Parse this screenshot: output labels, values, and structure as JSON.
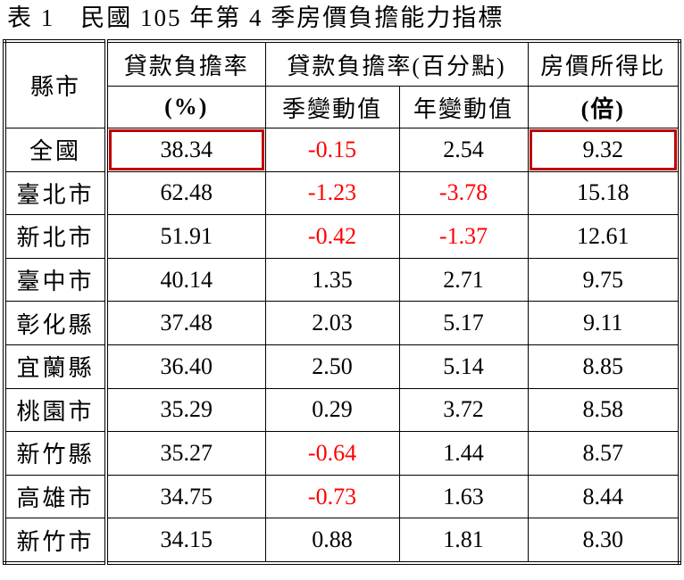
{
  "title": "表 1　民國 105 年第 4 季房價負擔能力指標",
  "table": {
    "header": {
      "region": "縣市",
      "loan_burden": "貸款負擔率",
      "loan_burden_unit": "(%)",
      "change_group": "貸款負擔率(百分點)",
      "quarterly_change": "季變動值",
      "annual_change": "年變動值",
      "price_income": "房價所得比",
      "price_income_unit": "(倍)"
    },
    "rows": [
      [
        "全國",
        "38.34",
        "-0.15",
        "2.54",
        "9.32"
      ],
      [
        "臺北市",
        "62.48",
        "-1.23",
        "-3.78",
        "15.18"
      ],
      [
        "新北市",
        "51.91",
        "-0.42",
        "-1.37",
        "12.61"
      ],
      [
        "臺中市",
        "40.14",
        "1.35",
        "2.71",
        "9.75"
      ],
      [
        "彰化縣",
        "37.48",
        "2.03",
        "5.17",
        "9.11"
      ],
      [
        "宜蘭縣",
        "36.40",
        "2.50",
        "5.14",
        "8.85"
      ],
      [
        "桃園市",
        "35.29",
        "0.29",
        "3.72",
        "8.58"
      ],
      [
        "新竹縣",
        "35.27",
        "-0.64",
        "1.44",
        "8.57"
      ],
      [
        "高雄市",
        "34.75",
        "-0.73",
        "1.63",
        "8.44"
      ],
      [
        "新竹市",
        "34.15",
        "0.88",
        "1.81",
        "8.30"
      ]
    ],
    "negative_color": "#ff0000",
    "highlight_color": "#c00000"
  }
}
